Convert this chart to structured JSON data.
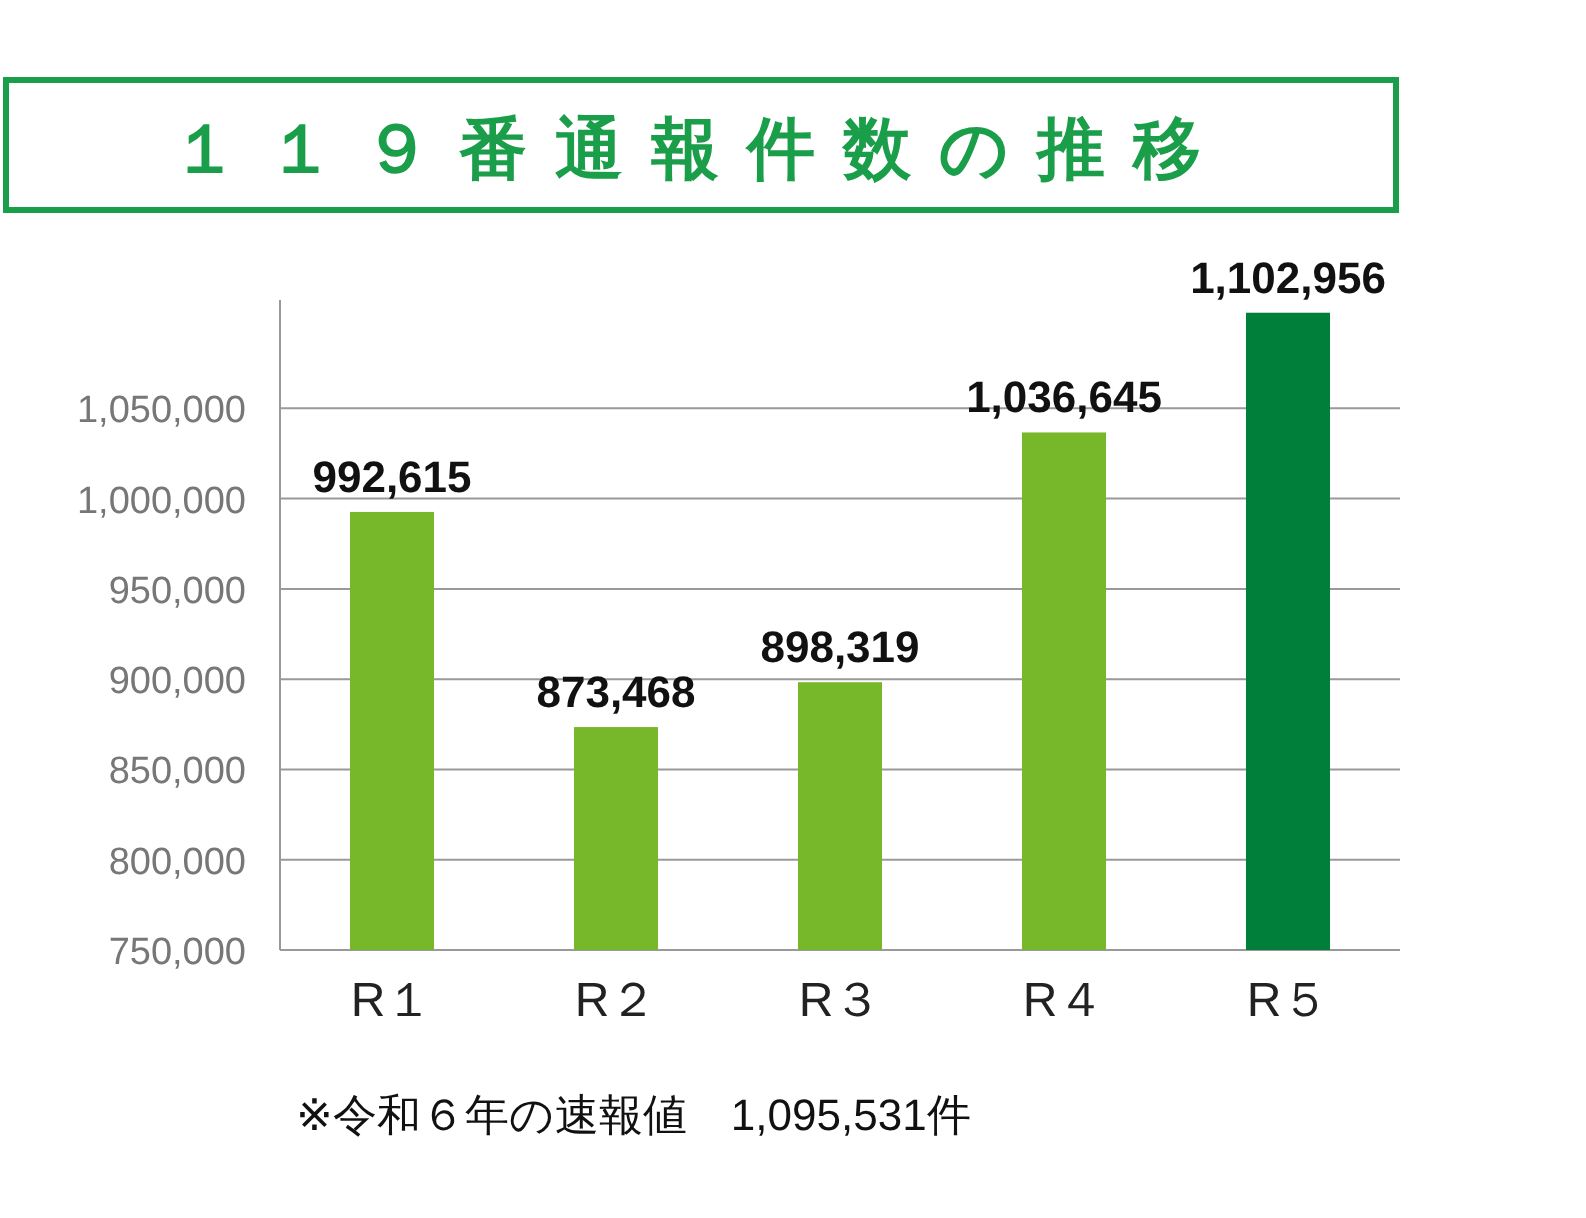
{
  "chart_data": {
    "type": "bar",
    "title": "１１９番通報件数の推移",
    "categories": [
      "R１",
      "R２",
      "R３",
      "R４",
      "R５"
    ],
    "values": [
      992615,
      873468,
      898319,
      1036645,
      1102956
    ],
    "colors": [
      "#76b82a",
      "#76b82a",
      "#76b82a",
      "#76b82a",
      "#007f3a"
    ],
    "ylim": [
      750000,
      1110000
    ],
    "yticks": [
      {
        "value": 750000,
        "label": "750,000"
      },
      {
        "value": 800000,
        "label": "800,000"
      },
      {
        "value": 850000,
        "label": "850,000"
      },
      {
        "value": 900000,
        "label": "900,000"
      },
      {
        "value": 950000,
        "label": "950,000"
      },
      {
        "value": 1000000,
        "label": "1,000,000"
      },
      {
        "value": 1050000,
        "label": "1,050,000"
      }
    ],
    "grid": "y",
    "value_labels": [
      "992,615",
      "873,468",
      "898,319",
      "1,036,645",
      "1,102,956"
    ],
    "annotations": [
      "※令和６年の速報値　1,095,531件"
    ]
  }
}
